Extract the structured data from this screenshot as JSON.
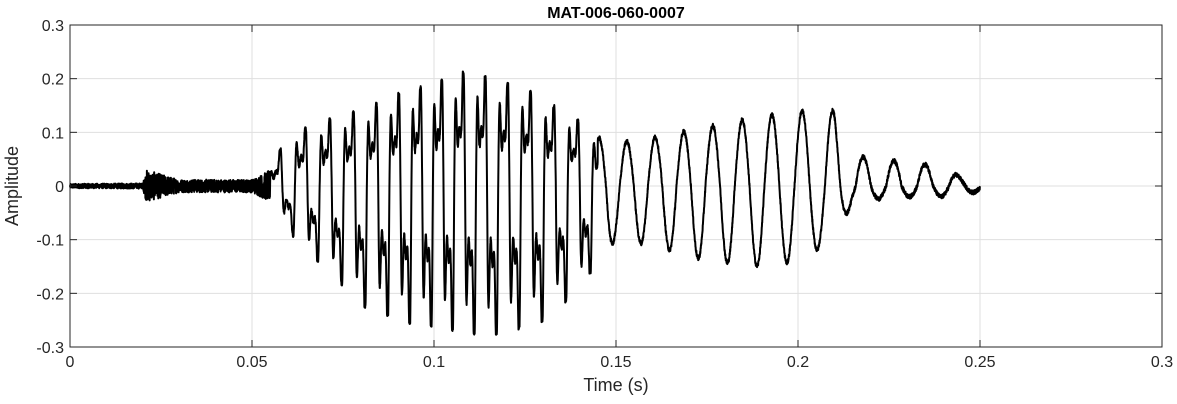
{
  "chart_data": {
    "type": "line",
    "title": "MAT-006-060-0007",
    "xlabel": "Time (s)",
    "ylabel": "Amplitude",
    "xlim": [
      0,
      0.3
    ],
    "ylim": [
      -0.3,
      0.3
    ],
    "xticks": [
      0,
      0.05,
      0.1,
      0.15,
      0.2,
      0.25,
      0.3
    ],
    "xtick_labels": [
      "0",
      "0.05",
      "0.1",
      "0.15",
      "0.2",
      "0.25",
      "0.3"
    ],
    "yticks": [
      -0.3,
      -0.2,
      -0.1,
      0,
      0.1,
      0.2,
      0.3
    ],
    "ytick_labels": [
      "-0.3",
      "-0.2",
      "-0.1",
      "0",
      "0.1",
      "0.2",
      "0.3"
    ],
    "grid": true,
    "line_color": "#000000",
    "series": [
      {
        "envelope": {
          "x": [
            0,
            0.02,
            0.021,
            0.03,
            0.05,
            0.055,
            0.058,
            0.062,
            0.07,
            0.08,
            0.09,
            0.1,
            0.108,
            0.115,
            0.125,
            0.13,
            0.14,
            0.145,
            0.15,
            0.16,
            0.175,
            0.19,
            0.2,
            0.21,
            0.215,
            0.22,
            0.23,
            0.24,
            0.245,
            0.25
          ],
          "upper": [
            0.004,
            0.005,
            0.03,
            0.012,
            0.012,
            0.03,
            0.07,
            0.1,
            0.12,
            0.14,
            0.17,
            0.19,
            0.21,
            0.2,
            0.18,
            0.16,
            0.12,
            0.09,
            0.08,
            0.09,
            0.11,
            0.13,
            0.14,
            0.14,
            0.06,
            0.05,
            0.045,
            0.035,
            0.015,
            0.01
          ],
          "lower": [
            -0.004,
            -0.005,
            -0.025,
            -0.012,
            -0.012,
            -0.02,
            -0.05,
            -0.1,
            -0.15,
            -0.22,
            -0.25,
            -0.26,
            -0.27,
            -0.28,
            -0.26,
            -0.25,
            -0.19,
            -0.14,
            -0.1,
            -0.11,
            -0.14,
            -0.15,
            -0.14,
            -0.1,
            -0.03,
            -0.025,
            -0.02,
            -0.02,
            -0.015,
            -0.01
          ]
        },
        "fundamental_hz": {
          "x": [
            0.055,
            0.1,
            0.14,
            0.15,
            0.2,
            0.215,
            0.22,
            0.25
          ],
          "hz": [
            140,
            172,
            150,
            130,
            120,
            118,
            120,
            110
          ]
        }
      }
    ]
  }
}
